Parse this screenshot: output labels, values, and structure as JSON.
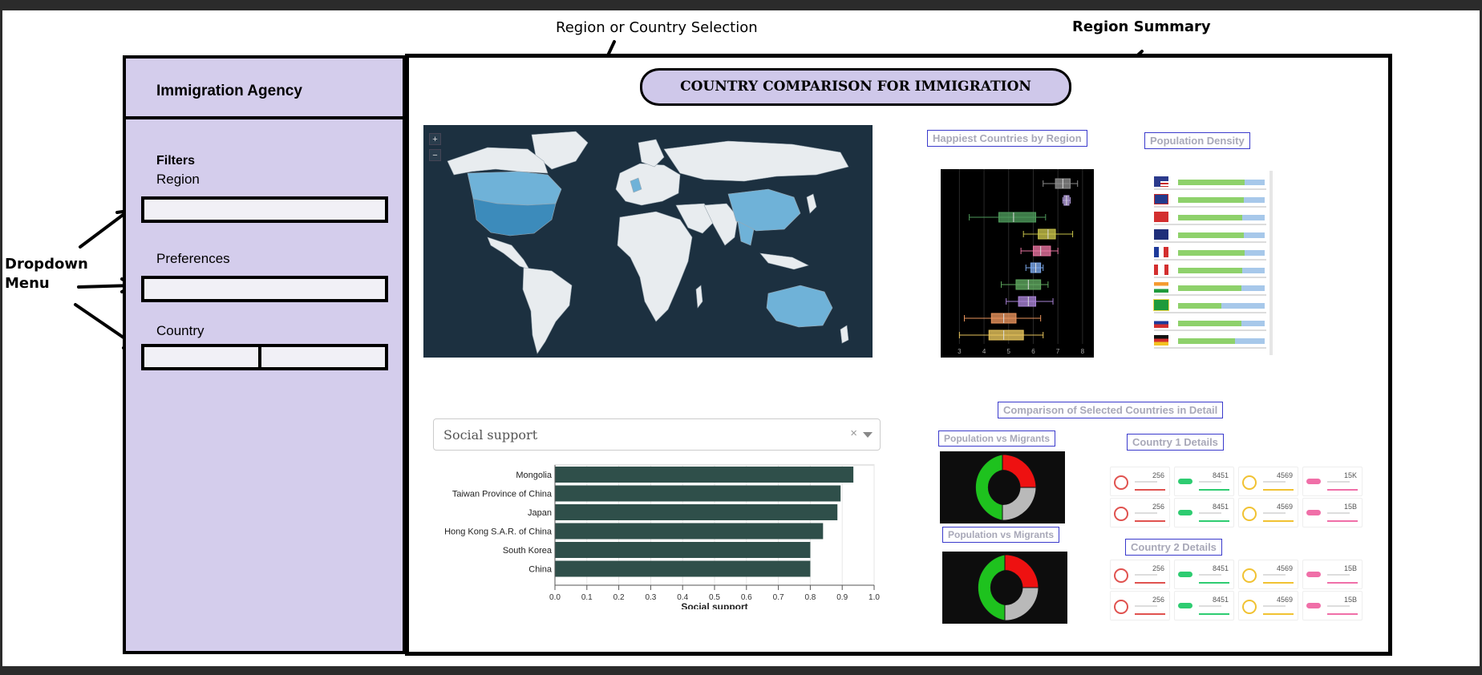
{
  "annotations": {
    "selection": "Region or Country Selection",
    "summary": "Region Summary",
    "dropdown": "Dropdown\nMenu"
  },
  "sidebar": {
    "title": "Immigration Agency",
    "filters_title": "Filters",
    "fields": [
      {
        "label": "Region",
        "value": ""
      },
      {
        "label": "Preferences",
        "value": ""
      },
      {
        "label": "Country",
        "value": ""
      }
    ]
  },
  "main": {
    "title": "COUNTRY COMPARISON FOR IMMIGRATION",
    "zoom_in": "+",
    "zoom_out": "−",
    "happiest_title": "Happiest Countries by Region",
    "density_title": "Population Density",
    "comparison_title": "Comparison of Selected Countries in Detail",
    "donut_title_1": "Population vs Migrants",
    "donut_title_2": "Population vs Migrants",
    "country1_title": "Country 1 Details",
    "country2_title": "Country 2 Details",
    "social_select": {
      "value": "Social support",
      "clear": "×"
    }
  },
  "colors": {
    "sidebar_bg": "#d4cdec",
    "title_bg": "#cfc8ea",
    "map_ocean": "#1c3040",
    "map_land": "#e8ecef",
    "map_highlight": "#6fb2d8",
    "bar_fill": "#2f4f4a",
    "donut_green": "#1ec21e",
    "donut_red": "#ee1111",
    "donut_grey": "#b9b9b9"
  },
  "density_flags": [
    "us-flag",
    "uk-flag",
    "china-flag",
    "australia-flag",
    "france-flag",
    "canada-flag",
    "india-flag",
    "brazil-flag",
    "russia-flag",
    "germany-flag"
  ],
  "density_fill": [
    0.77,
    0.76,
    0.74,
    0.76,
    0.77,
    0.74,
    0.73,
    0.5,
    0.73,
    0.66
  ],
  "stat_rows": [
    [
      "256",
      "8451",
      "4569",
      "15K"
    ],
    [
      "256",
      "8451",
      "4569",
      "15B"
    ],
    [
      "256",
      "8451",
      "4569",
      "15B"
    ],
    [
      "256",
      "8451",
      "4569",
      "15B"
    ]
  ],
  "chart_data": [
    {
      "type": "bar",
      "orientation": "horizontal",
      "categories": [
        "Mongolia",
        "Taiwan Province of China",
        "Japan",
        "Hong Kong S.A.R. of China",
        "South Korea",
        "China"
      ],
      "category_labels": [
        "Mongolia",
        "Taiwan Province of China",
        "Japan",
        "Hong Kong S.A.R. of China",
        "South Korea",
        "China"
      ],
      "values": [
        0.935,
        0.895,
        0.885,
        0.84,
        0.8,
        0.8
      ],
      "xlabel": "Social support",
      "xlim": [
        0,
        1.0
      ],
      "xticks": [
        "0.0",
        "0.1",
        "0.2",
        "0.3",
        "0.4",
        "0.5",
        "0.6",
        "0.7",
        "0.8",
        "0.9",
        "1.0"
      ],
      "grid": true
    },
    {
      "type": "box",
      "title": "Happiest Countries by Region",
      "xlim": [
        2.5,
        8.2
      ],
      "xticks": [
        "3",
        "4",
        "5",
        "6",
        "7",
        "8"
      ],
      "series": [
        {
          "color": "#8d8d8d",
          "whisker": [
            6.4,
            7.8
          ],
          "box": [
            6.9,
            7.5
          ],
          "median": 7.2
        },
        {
          "color": "#b39ddb",
          "whisker": [
            7.2,
            7.5
          ],
          "box": [
            7.25,
            7.45
          ],
          "median": 7.35
        },
        {
          "color": "#4e9a5b",
          "whisker": [
            3.4,
            6.5
          ],
          "box": [
            4.6,
            6.1
          ],
          "median": 5.2
        },
        {
          "color": "#c7c24a",
          "whisker": [
            5.6,
            7.6
          ],
          "box": [
            6.2,
            6.9
          ],
          "median": 6.6
        },
        {
          "color": "#e6739f",
          "whisker": [
            5.5,
            7.0
          ],
          "box": [
            6.0,
            6.7
          ],
          "median": 6.3
        },
        {
          "color": "#7aa6e8",
          "whisker": [
            5.7,
            6.4
          ],
          "box": [
            5.9,
            6.3
          ],
          "median": 6.1
        },
        {
          "color": "#5fa85f",
          "whisker": [
            4.7,
            6.6
          ],
          "box": [
            5.3,
            6.3
          ],
          "median": 5.8
        },
        {
          "color": "#a983d6",
          "whisker": [
            4.9,
            6.8
          ],
          "box": [
            5.4,
            6.1
          ],
          "median": 5.8
        },
        {
          "color": "#e8935c",
          "whisker": [
            3.2,
            6.3
          ],
          "box": [
            4.3,
            5.3
          ],
          "median": 4.8
        },
        {
          "color": "#e8c55c",
          "whisker": [
            3.0,
            6.4
          ],
          "box": [
            4.2,
            5.6
          ],
          "median": 4.8
        }
      ]
    },
    {
      "type": "pie",
      "title": "Population vs Migrants",
      "slices": [
        {
          "name": "green",
          "value": 0.5
        },
        {
          "name": "red",
          "value": 0.25
        },
        {
          "name": "grey",
          "value": 0.25
        }
      ]
    }
  ]
}
